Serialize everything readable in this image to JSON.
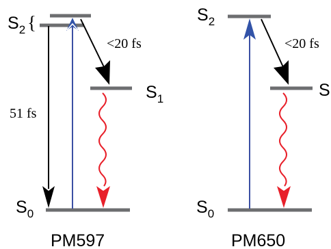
{
  "colors": {
    "level": "#6d6e70",
    "absorption": "#3b4fa3",
    "absorption_head": "#3253a8",
    "fluorescence": "#e8202a",
    "conversion": "#000000"
  },
  "panels": [
    {
      "title": "PM597",
      "s2_letter": "S",
      "s2_sub": "2",
      "brace": "{",
      "s1_letter": "S",
      "s1_sub": "1",
      "s0_letter": "S",
      "s0_sub": "0",
      "conversion_time": "<20 fs",
      "relaxation_time": "51 fs"
    },
    {
      "title": "PM650",
      "s2_letter": "S",
      "s2_sub": "2",
      "s1_letter": "S",
      "s0_letter": "S",
      "s0_sub": "0",
      "conversion_time": "<20 fs"
    }
  ]
}
